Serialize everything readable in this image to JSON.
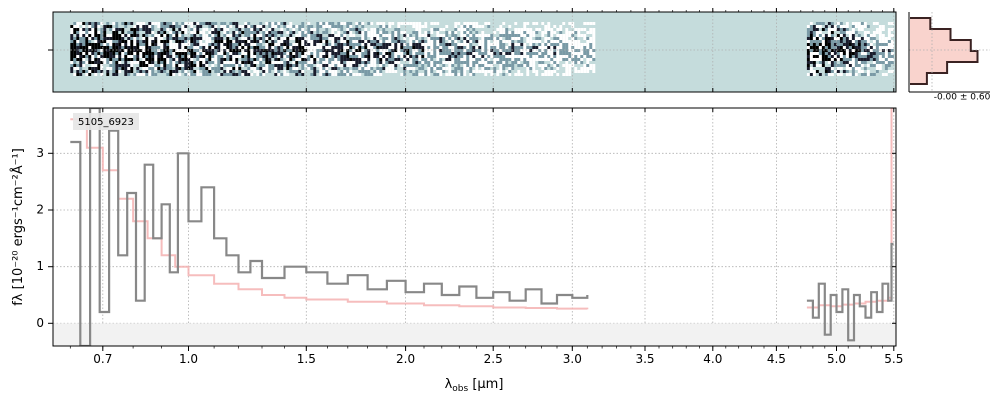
{
  "chart_data": [
    {
      "type": "heatmap",
      "panel": "2d-spectrum",
      "background_color": "#c5dcdc",
      "colormap": [
        "#c5dcdc",
        "#ffffff",
        "#7a9aa6",
        "#1a1c2c",
        "#000000"
      ],
      "coverage_um": [
        [
          0.6,
          3.15
        ],
        [
          4.75,
          5.48
        ]
      ],
      "grid": true
    },
    {
      "type": "histogram",
      "panel": "noise-histogram",
      "label": "-0.00 ± 0.60",
      "bins": [
        -1.5,
        -1.0,
        -0.5,
        0.0,
        0.5,
        1.0,
        1.5
      ],
      "counts": [
        0.3,
        0.6,
        0.9,
        1.0,
        0.55,
        0.25
      ],
      "line_color": "#3a2222",
      "fill_color": "#f8c8c0"
    },
    {
      "type": "line",
      "panel": "1d-spectrum",
      "annotation": "5105_6923",
      "xlabel": "λobs [μm]",
      "ylabel": "fλ [10⁻²⁰ ergs⁻¹cm⁻²Å⁻¹]",
      "x_scale": "sqrt",
      "xlim": [
        0.55,
        5.52
      ],
      "ylim": [
        -0.4,
        3.8
      ],
      "x_ticks": [
        0.7,
        1.0,
        1.5,
        2.0,
        2.5,
        3.0,
        3.5,
        4.0,
        4.5,
        5.0,
        5.5
      ],
      "x_tick_labels": [
        "0.7",
        "1.0",
        "1.5",
        "2.0",
        "2.5",
        "3.0",
        "3.5",
        "4.0",
        "4.5",
        "5.0",
        "5.5"
      ],
      "y_ticks": [
        0,
        1,
        2,
        3
      ],
      "y_tick_labels": [
        "0",
        "1",
        "2",
        "3"
      ],
      "grid": true,
      "data_color": "#888888",
      "model_color": "#f4b2b2",
      "series": [
        {
          "role": "data",
          "x": [
            0.6,
            0.63,
            0.66,
            0.69,
            0.72,
            0.75,
            0.78,
            0.81,
            0.84,
            0.87,
            0.9,
            0.93,
            0.96,
            1.0,
            1.05,
            1.1,
            1.15,
            1.2,
            1.25,
            1.3,
            1.4,
            1.5,
            1.6,
            1.7,
            1.8,
            1.9,
            2.0,
            2.1,
            2.2,
            2.3,
            2.4,
            2.5,
            2.6,
            2.7,
            2.8,
            2.9,
            3.0,
            3.1,
            4.75,
            4.8,
            4.85,
            4.9,
            4.95,
            5.0,
            5.05,
            5.1,
            5.15,
            5.2,
            5.25,
            5.3,
            5.35,
            5.4,
            5.45,
            5.48
          ],
          "y": [
            3.2,
            -0.4,
            3.8,
            0.2,
            3.4,
            1.2,
            2.3,
            0.4,
            2.8,
            1.5,
            2.1,
            0.9,
            3.0,
            1.8,
            2.4,
            1.5,
            1.2,
            0.9,
            1.1,
            0.8,
            1.0,
            0.9,
            0.7,
            0.85,
            0.6,
            0.75,
            0.55,
            0.7,
            0.5,
            0.65,
            0.45,
            0.55,
            0.4,
            0.6,
            0.35,
            0.5,
            0.45,
            0.5,
            0.4,
            0.1,
            0.7,
            -0.2,
            0.5,
            0.2,
            0.6,
            -0.3,
            0.5,
            0.3,
            0.1,
            0.55,
            0.2,
            0.7,
            0.4,
            1.4
          ]
        },
        {
          "role": "model",
          "x": [
            0.6,
            0.65,
            0.7,
            0.75,
            0.8,
            0.85,
            0.9,
            0.95,
            1.0,
            1.1,
            1.2,
            1.3,
            1.4,
            1.5,
            1.7,
            1.9,
            2.1,
            2.3,
            2.5,
            2.7,
            2.9,
            3.1,
            4.75,
            4.85,
            4.95,
            5.05,
            5.15,
            5.25,
            5.35,
            5.45,
            5.48
          ],
          "y": [
            3.6,
            3.1,
            2.7,
            2.2,
            1.8,
            1.5,
            1.2,
            1.0,
            0.85,
            0.7,
            0.6,
            0.5,
            0.45,
            0.42,
            0.38,
            0.35,
            0.32,
            0.3,
            0.28,
            0.27,
            0.26,
            0.25,
            0.28,
            0.32,
            0.3,
            0.33,
            0.35,
            0.38,
            0.4,
            0.45,
            3.8
          ]
        }
      ]
    }
  ]
}
